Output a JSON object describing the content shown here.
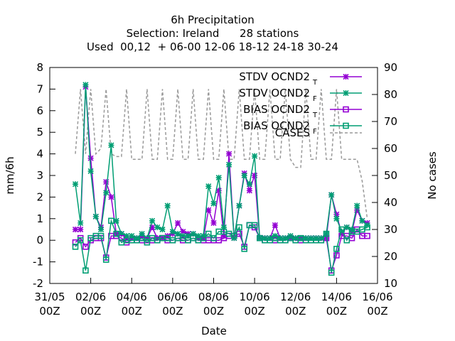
{
  "chart_data": {
    "type": "line",
    "title": [
      "6h Precipitation",
      "Selection: Ireland      28 stations",
      "Used  00,12  + 06-00 12-06 18-12 24-18 30-24"
    ],
    "xlabel": "Date",
    "ylabel": "mm/6h",
    "y2label": "No cases",
    "ylim": [
      -2,
      8
    ],
    "y2lim": [
      10,
      90
    ],
    "xlim": [
      0,
      16
    ],
    "grid": false,
    "legend_position": "top-right",
    "x_ticks": [
      {
        "x": 0,
        "line1": "31/05",
        "line2": "00Z"
      },
      {
        "x": 2,
        "line1": "02/06",
        "line2": "00Z"
      },
      {
        "x": 4,
        "line1": "04/06",
        "line2": "00Z"
      },
      {
        "x": 6,
        "line1": "06/06",
        "line2": "00Z"
      },
      {
        "x": 8,
        "line1": "08/06",
        "line2": "00Z"
      },
      {
        "x": 10,
        "line1": "10/06",
        "line2": "00Z"
      },
      {
        "x": 12,
        "line1": "12/06",
        "line2": "00Z"
      },
      {
        "x": 14,
        "line1": "14/06",
        "line2": "00Z"
      },
      {
        "x": 16,
        "line1": "16/06",
        "line2": "00Z"
      }
    ],
    "y_ticks": [
      -2,
      -1,
      0,
      1,
      2,
      3,
      4,
      5,
      6,
      7,
      8
    ],
    "y2_ticks": [
      10,
      20,
      30,
      40,
      50,
      60,
      70,
      80,
      90
    ],
    "x": [
      1.25,
      1.5,
      1.75,
      2.0,
      2.25,
      2.5,
      2.75,
      3.0,
      3.25,
      3.5,
      3.75,
      4.0,
      4.25,
      4.5,
      4.75,
      5.0,
      5.25,
      5.5,
      5.75,
      6.0,
      6.25,
      6.5,
      6.75,
      7.0,
      7.25,
      7.5,
      7.75,
      8.0,
      8.25,
      8.5,
      8.75,
      9.0,
      9.25,
      9.5,
      9.75,
      10.0,
      10.25,
      10.5,
      10.75,
      11.0,
      11.25,
      11.5,
      11.75,
      12.0,
      12.25,
      12.5,
      12.75,
      13.0,
      13.25,
      13.5,
      13.75,
      14.0,
      14.25,
      14.5,
      14.75,
      15.0,
      15.25,
      15.5
    ],
    "series": [
      {
        "name": "STDV OCND2",
        "sub": "T",
        "color": "#9400d3",
        "marker": "x",
        "axis": "y",
        "values": [
          0.5,
          0.5,
          7.1,
          3.8,
          1.1,
          0.6,
          2.7,
          2.0,
          0.3,
          0.3,
          0.1,
          0.1,
          0.1,
          0.2,
          0.1,
          0.6,
          0.1,
          0.1,
          0.2,
          0.3,
          0.8,
          0.4,
          0.3,
          0.3,
          0.1,
          0.1,
          1.4,
          0.8,
          2.3,
          0.2,
          4.0,
          0.1,
          1.6,
          3.1,
          2.3,
          3.0,
          0.1,
          0.1,
          0.1,
          0.7,
          0.1,
          0.1,
          0.1,
          0.1,
          0.1,
          0.1,
          0.1,
          0.1,
          0.1,
          0.1,
          2.1,
          1.2,
          0.3,
          0.6,
          0.4,
          1.4,
          0.9,
          0.8
        ]
      },
      {
        "name": "STDV OCND2",
        "sub": "F",
        "color": "#009e73",
        "marker": "x",
        "axis": "y",
        "values": [
          2.6,
          0.8,
          7.2,
          3.2,
          1.1,
          0.5,
          2.2,
          4.4,
          0.9,
          0.3,
          0.2,
          0.2,
          0.1,
          0.3,
          0.1,
          0.9,
          0.6,
          0.5,
          1.6,
          0.4,
          0.3,
          0.2,
          0.2,
          0.3,
          0.2,
          0.2,
          2.5,
          1.7,
          2.9,
          0.6,
          3.5,
          0.1,
          1.6,
          3.0,
          2.6,
          3.9,
          0.1,
          0.1,
          0.1,
          0.2,
          0.1,
          0.1,
          0.2,
          0.1,
          0.1,
          0.1,
          0.1,
          0.1,
          0.1,
          0.3,
          2.1,
          1.0,
          0.4,
          0.6,
          0.5,
          1.6,
          0.9,
          0.7
        ]
      },
      {
        "name": "BIAS OCND2",
        "sub": "T",
        "color": "#9400d3",
        "marker": "square",
        "axis": "y",
        "values": [
          -0.1,
          0.1,
          -0.3,
          0.0,
          0.1,
          0.1,
          -0.8,
          0.2,
          0.2,
          0.1,
          -0.1,
          0.0,
          0.0,
          0.0,
          0.0,
          0.0,
          0.0,
          0.1,
          0.0,
          0.0,
          0.1,
          0.0,
          0.0,
          0.1,
          0.0,
          0.0,
          0.0,
          0.0,
          0.0,
          0.1,
          0.2,
          0.2,
          0.3,
          -0.3,
          0.7,
          0.6,
          0.1,
          0.0,
          0.0,
          0.0,
          0.0,
          0.0,
          0.1,
          0.0,
          0.0,
          0.0,
          0.0,
          0.0,
          0.0,
          0.1,
          -1.4,
          -0.7,
          0.2,
          0.2,
          0.1,
          0.5,
          0.2,
          0.2
        ]
      },
      {
        "name": "BIAS OCND2",
        "sub": "F",
        "color": "#009e73",
        "marker": "square",
        "axis": "y",
        "values": [
          -0.3,
          0.0,
          -1.4,
          0.1,
          0.2,
          0.2,
          -0.9,
          0.9,
          0.3,
          -0.1,
          0.0,
          0.0,
          0.0,
          0.1,
          -0.1,
          0.1,
          0.0,
          0.1,
          0.1,
          0.0,
          0.1,
          0.1,
          0.0,
          0.1,
          0.0,
          0.1,
          0.3,
          0.1,
          0.4,
          0.4,
          0.3,
          0.2,
          0.6,
          -0.4,
          0.7,
          0.7,
          0.1,
          0.0,
          0.0,
          0.1,
          0.0,
          0.0,
          0.1,
          0.0,
          0.1,
          0.0,
          0.0,
          0.0,
          0.0,
          0.3,
          -1.5,
          -0.4,
          0.5,
          0.0,
          0.4,
          0.4,
          0.5,
          0.6
        ]
      },
      {
        "name": "CASES",
        "sub": "",
        "color": "#999999",
        "marker": "none",
        "dash": true,
        "axis": "y2",
        "values": [
          58,
          82,
          58,
          82,
          58,
          60,
          82,
          58,
          57,
          57,
          82,
          56,
          56,
          56,
          82,
          56,
          56,
          82,
          56,
          56,
          82,
          56,
          56,
          82,
          56,
          56,
          82,
          56,
          56,
          82,
          56,
          56,
          82,
          56,
          56,
          82,
          56,
          56,
          82,
          56,
          56,
          82,
          56,
          53,
          53,
          82,
          56,
          56,
          82,
          56,
          56,
          82,
          56,
          56,
          56,
          56,
          48,
          34
        ]
      }
    ]
  }
}
